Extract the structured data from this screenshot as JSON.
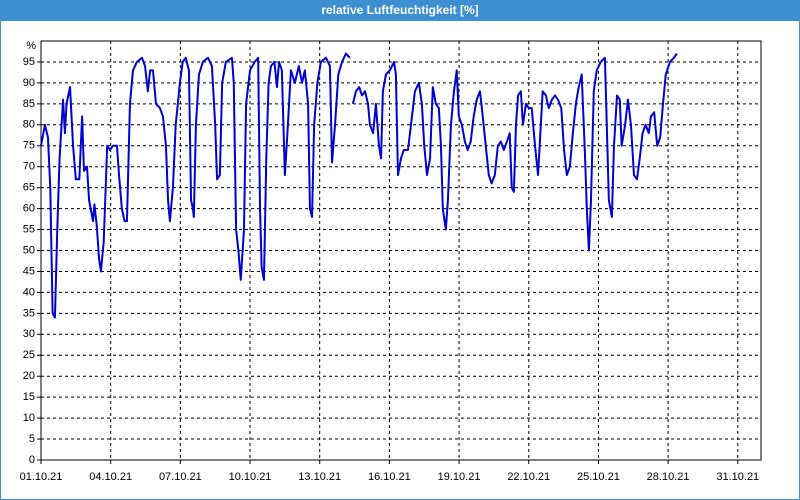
{
  "chart_data": {
    "type": "line",
    "title": "relative Luftfeuchtigkeit [%]",
    "y_label": "%",
    "color": "#0000cc",
    "grid": true,
    "xlim": [
      1,
      32
    ],
    "ylim": [
      0,
      100
    ],
    "xticks": [
      {
        "value": 1,
        "label": "01.10.21"
      },
      {
        "value": 4,
        "label": "04.10.21"
      },
      {
        "value": 7,
        "label": "07.10.21"
      },
      {
        "value": 10,
        "label": "10.10.21"
      },
      {
        "value": 13,
        "label": "13.10.21"
      },
      {
        "value": 16,
        "label": "16.10.21"
      },
      {
        "value": 19,
        "label": "19.10.21"
      },
      {
        "value": 22,
        "label": "22.10.21"
      },
      {
        "value": 25,
        "label": "25.10.21"
      },
      {
        "value": 28,
        "label": "28.10.21"
      },
      {
        "value": 31,
        "label": "31.10.21"
      }
    ],
    "yticks": [
      0,
      5,
      10,
      15,
      20,
      25,
      30,
      35,
      40,
      45,
      50,
      55,
      60,
      65,
      70,
      75,
      80,
      85,
      90,
      95
    ],
    "x": [
      1,
      1.17,
      1.3,
      1.4,
      1.5,
      1.6,
      1.7,
      1.8,
      1.95,
      2.03,
      2.1,
      2.25,
      2.38,
      2.5,
      2.65,
      2.77,
      2.85,
      2.98,
      3.07,
      3.24,
      3.3,
      3.4,
      3.5,
      3.58,
      3.7,
      3.85,
      3.97,
      4.1,
      4.27,
      4.36,
      4.48,
      4.6,
      4.7,
      4.83,
      4.96,
      5.13,
      5.35,
      5.48,
      5.6,
      5.7,
      5.82,
      5.95,
      6.12,
      6.25,
      6.38,
      6.47,
      6.55,
      6.68,
      6.8,
      6.98,
      7.1,
      7.23,
      7.37,
      7.46,
      7.54,
      7.58,
      7.67,
      7.8,
      7.97,
      8.19,
      8.36,
      8.5,
      8.58,
      8.7,
      8.8,
      8.96,
      9.22,
      9.3,
      9.4,
      9.5,
      9.6,
      9.74,
      9.83,
      10,
      10.2,
      10.35,
      10.43,
      10.5,
      10.6,
      10.7,
      10.8,
      10.9,
      11.05,
      11.16,
      11.25,
      11.37,
      11.5,
      11.63,
      11.76,
      11.93,
      12.1,
      12.24,
      12.36,
      12.5,
      12.58,
      12.67,
      12.76,
      12.9,
      13.05,
      13.27,
      13.44,
      13.53,
      13.66,
      13.8,
      13.96,
      14.13,
      14.3,
      14.37,
      14.43,
      14.56,
      14.7,
      14.82,
      14.95,
      15.08,
      15.16,
      15.3,
      15.42,
      15.55,
      15.64,
      15.72,
      15.85,
      16.02,
      16.2,
      16.28,
      16.37,
      16.5,
      16.62,
      16.8,
      16.93,
      17.1,
      17.27,
      17.4,
      17.5,
      17.62,
      17.75,
      17.87,
      18,
      18.13,
      18.22,
      18.3,
      18.43,
      18.52,
      18.65,
      18.78,
      18.9,
      18.99,
      19.12,
      19.25,
      19.37,
      19.5,
      19.63,
      19.76,
      19.9,
      20.02,
      20.15,
      20.28,
      20.4,
      20.54,
      20.67,
      20.8,
      20.93,
      21.06,
      21.18,
      21.27,
      21.36,
      21.45,
      21.54,
      21.66,
      21.75,
      21.88,
      22,
      22.13,
      22.27,
      22.4,
      22.52,
      22.6,
      22.74,
      22.86,
      23,
      23.13,
      23.26,
      23.4,
      23.52,
      23.64,
      23.77,
      23.9,
      24.03,
      24.15,
      24.28,
      24.42,
      24.5,
      24.59,
      24.68,
      24.8,
      24.93,
      25.1,
      25.28,
      25.36,
      25.45,
      25.58,
      25.67,
      25.8,
      25.92,
      26,
      26.15,
      26.27,
      26.4,
      26.53,
      26.66,
      26.78,
      26.9,
      27.03,
      27.17,
      27.26,
      27.4,
      27.53,
      27.66,
      27.78,
      27.9,
      28.08,
      28.25,
      28.38
    ],
    "values": [
      75,
      80,
      77,
      65,
      35,
      34,
      55,
      72,
      86,
      78,
      85,
      89,
      75,
      67,
      67,
      82,
      69,
      70,
      62,
      57,
      61,
      56,
      48,
      45,
      52,
      75,
      74,
      75,
      75,
      68,
      60,
      57,
      57,
      85,
      93,
      95,
      96,
      94,
      88,
      93,
      93,
      85,
      84,
      82,
      75,
      62,
      57,
      65,
      80,
      90,
      95,
      96,
      93,
      62,
      60,
      58,
      80,
      92,
      95,
      96,
      94,
      80,
      67,
      68,
      90,
      95,
      96,
      90,
      55,
      50,
      43,
      55,
      85,
      93,
      95,
      96,
      60,
      46,
      43,
      72,
      90,
      94,
      95,
      89,
      95,
      93,
      68,
      80,
      93,
      90,
      94,
      90,
      93,
      85,
      60,
      58,
      80,
      90,
      95,
      96,
      94,
      71,
      80,
      92,
      95,
      97,
      96,
      null,
      85,
      88,
      89,
      87,
      88,
      85,
      80,
      78,
      85,
      75,
      72,
      88,
      92,
      93,
      95,
      92,
      68,
      72,
      74,
      74,
      80,
      88,
      90,
      85,
      75,
      68,
      72,
      89,
      85,
      84,
      75,
      60,
      55,
      62,
      80,
      88,
      93,
      82,
      80,
      76,
      74,
      76,
      82,
      86,
      88,
      82,
      75,
      68,
      66,
      68,
      75,
      76,
      74,
      76,
      78,
      65,
      64,
      80,
      87,
      88,
      80,
      85,
      84,
      84,
      75,
      68,
      80,
      88,
      87,
      84,
      86,
      87,
      86,
      84,
      74,
      68,
      70,
      78,
      85,
      89,
      92,
      73,
      60,
      50,
      62,
      88,
      93,
      95,
      96,
      80,
      62,
      58,
      75,
      87,
      86,
      75,
      80,
      86,
      80,
      68,
      67,
      72,
      78,
      80,
      78,
      82,
      83,
      75,
      77,
      85,
      92,
      95,
      96,
      97
    ]
  }
}
